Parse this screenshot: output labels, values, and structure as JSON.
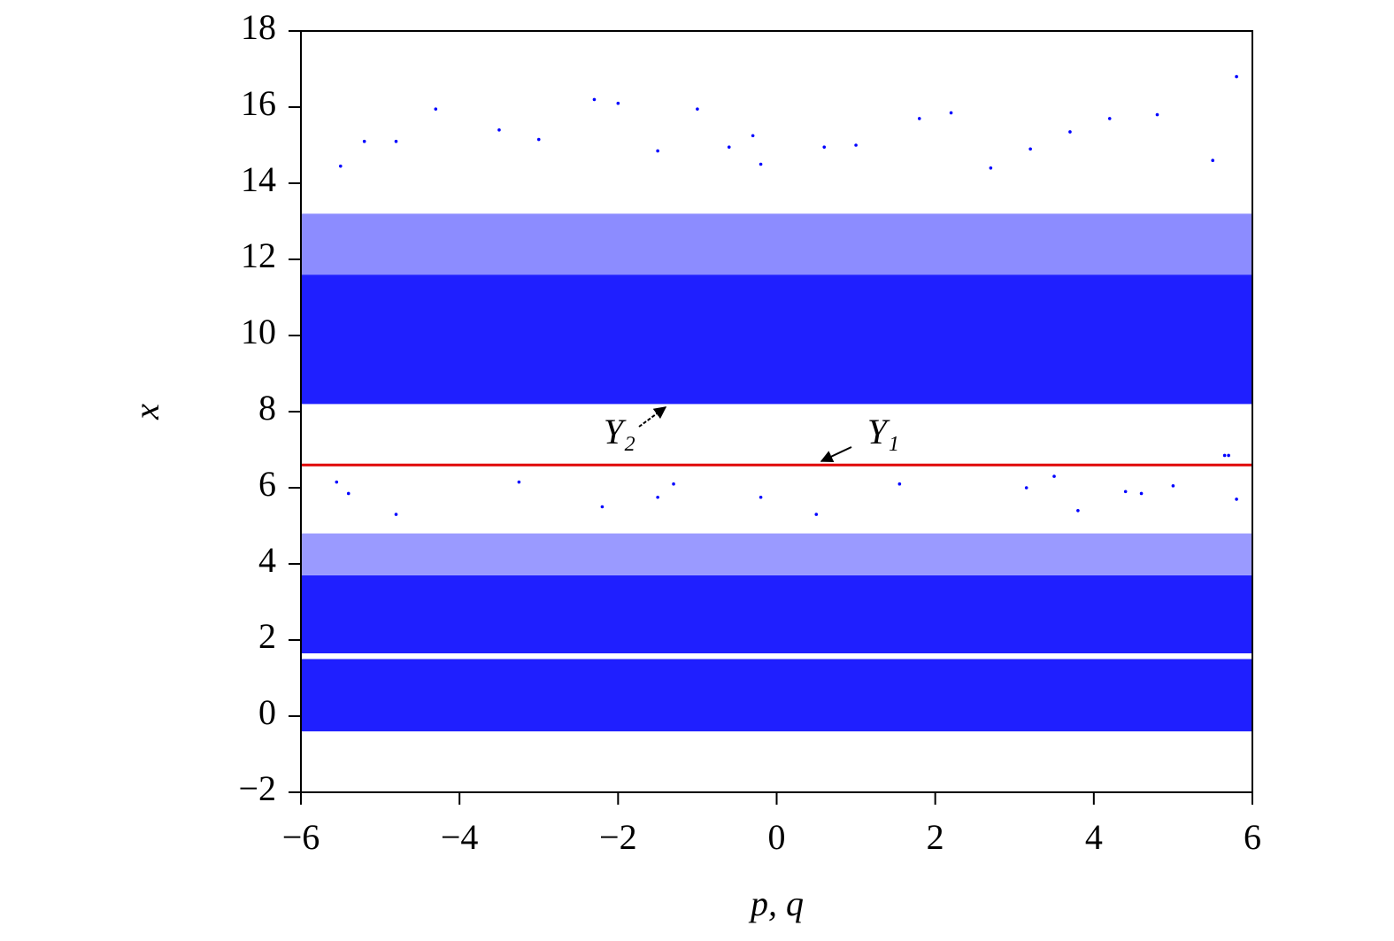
{
  "chart_data": {
    "type": "scatter",
    "xlabel": "p, q",
    "ylabel": "x",
    "xlim": [
      -6,
      6
    ],
    "ylim": [
      -2,
      18
    ],
    "xticks": [
      {
        "value": -6,
        "label": "−6"
      },
      {
        "value": -4,
        "label": "−4"
      },
      {
        "value": -2,
        "label": "−2"
      },
      0,
      2,
      4,
      6
    ],
    "yticks": [
      {
        "value": -2,
        "label": "−2"
      },
      0,
      2,
      4,
      6,
      8,
      10,
      12,
      14,
      16,
      18
    ],
    "bands": [
      {
        "ylim": [
          8.2,
          11.6
        ],
        "color": "#1f1fff"
      },
      {
        "ylim": [
          11.6,
          13.2
        ],
        "color": "#8c8cff"
      },
      {
        "ylim": [
          1.65,
          3.7
        ],
        "color": "#1f1fff"
      },
      {
        "ylim": [
          3.7,
          4.8
        ],
        "color": "#9a9aff"
      },
      {
        "ylim": [
          -0.4,
          1.5
        ],
        "color": "#1f1fff"
      }
    ],
    "series": [
      {
        "color": "#0000ff",
        "x": [
          -4.3,
          -2.3,
          -2,
          -1,
          -3.5,
          -5.2,
          -4.8,
          5.8,
          2.2,
          4.2,
          4.8,
          1.8,
          3.7,
          -0.3,
          -0.6,
          0.6,
          1,
          3.2,
          -1.5,
          5.5,
          -5.5,
          -3,
          -0.2,
          2.7,
          -3.25,
          -5.55,
          -5.4,
          1.55,
          3.15,
          3.5,
          -1.3,
          -1.5,
          -0.2,
          5.65,
          5.7,
          4.4,
          4.6,
          5,
          5.8,
          -2.2,
          -4.8,
          3.8,
          0.5
        ],
        "y": [
          15.95,
          16.2,
          16.1,
          15.95,
          15.4,
          15.1,
          15.1,
          16.8,
          15.85,
          15.7,
          15.8,
          15.7,
          15.35,
          15.25,
          14.95,
          14.95,
          15,
          14.9,
          14.85,
          14.6,
          14.45,
          15.15,
          14.5,
          14.4,
          6.15,
          6.15,
          5.85,
          6.1,
          6,
          6.3,
          6.1,
          5.75,
          5.75,
          6.85,
          6.85,
          5.9,
          5.85,
          6.05,
          5.7,
          5.5,
          5.3,
          5.4,
          5.3
        ]
      },
      {
        "color": "#e00000",
        "x": [
          -6,
          6
        ],
        "y": [
          6.6,
          6.6
        ]
      }
    ],
    "annotations": [
      {
        "text": "Y₂"
      },
      {
        "text": "Y₁"
      }
    ]
  }
}
